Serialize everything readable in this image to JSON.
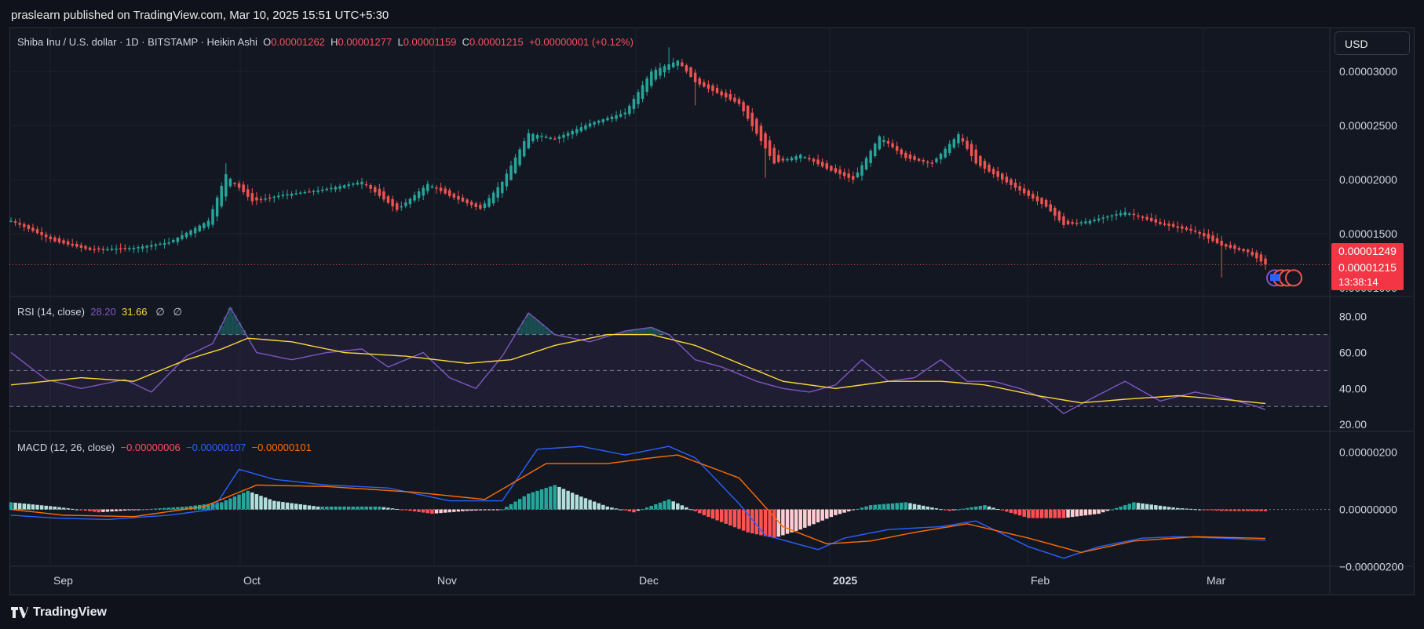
{
  "header": {
    "publisher_line": "praslearn published on TradingView.com, Mar 10, 2025 15:51 UTC+5:30"
  },
  "footer": {
    "brand": "TradingView"
  },
  "symbol_legend": {
    "title": "Shiba Inu / U.S. dollar · 1D · BITSTAMP · Heikin Ashi",
    "open_label": "O",
    "open": "0.00001262",
    "high_label": "H",
    "high": "0.00001277",
    "low_label": "L",
    "low": "0.00001159",
    "close_label": "C",
    "close": "0.00001215",
    "change": "+0.00000001 (+0.12%)"
  },
  "currency_button": "USD",
  "price_badges": {
    "upper": "0.00001249",
    "current": "0.00001215",
    "countdown": "13:38:14",
    "partial_tick": "0.00001000"
  },
  "rsi_legend": {
    "name": "RSI (14, close)",
    "rsi": "28.20",
    "ma": "31.66",
    "extra1": "∅",
    "extra2": "∅"
  },
  "macd_legend": {
    "name": "MACD (12, 26, close)",
    "hist": "−0.00000006",
    "macd": "−0.00000107",
    "signal": "−0.00000101"
  },
  "colors": {
    "bg": "#131722",
    "up": "#26a69a",
    "down": "#ef5350",
    "rsi": "#7e57c2",
    "rsi_ma": "#fdd835",
    "macd": "#2962ff",
    "signal": "#ff6d00",
    "hist_up_strong": "#26a69a",
    "hist_up_weak": "#b2dfdb",
    "hist_down_strong": "#ff5252",
    "hist_down_weak": "#ffcdd2"
  },
  "chart_data": [
    {
      "type": "candlestick",
      "title": "Shiba Inu / U.S. dollar · 1D · BITSTAMP · Heikin Ashi",
      "x_tick_labels": [
        "Sep",
        "Oct",
        "Nov",
        "Dec",
        "2025",
        "Feb",
        "Mar"
      ],
      "y_tick_labels": [
        "0.00003000",
        "0.00002500",
        "0.00002000",
        "0.00001500"
      ],
      "ylim": [
        9.2e-06,
        3.4e-05
      ],
      "close_anchors_1e8": [
        [
          0,
          1620
        ],
        [
          10,
          1430
        ],
        [
          18,
          1350
        ],
        [
          28,
          1370
        ],
        [
          36,
          1420
        ],
        [
          45,
          1620
        ],
        [
          49,
          2050
        ],
        [
          55,
          1800
        ],
        [
          62,
          1860
        ],
        [
          70,
          1900
        ],
        [
          80,
          1980
        ],
        [
          88,
          1720
        ],
        [
          95,
          1960
        ],
        [
          100,
          1850
        ],
        [
          107,
          1730
        ],
        [
          112,
          1980
        ],
        [
          118,
          2430
        ],
        [
          124,
          2380
        ],
        [
          132,
          2520
        ],
        [
          140,
          2620
        ],
        [
          146,
          3000
        ],
        [
          152,
          3100
        ],
        [
          156,
          2900
        ],
        [
          160,
          2820
        ],
        [
          166,
          2700
        ],
        [
          174,
          2150
        ],
        [
          180,
          2230
        ],
        [
          186,
          2100
        ],
        [
          192,
          2000
        ],
        [
          198,
          2400
        ],
        [
          204,
          2200
        ],
        [
          210,
          2150
        ],
        [
          216,
          2420
        ],
        [
          220,
          2150
        ],
        [
          226,
          2000
        ],
        [
          232,
          1850
        ],
        [
          236,
          1750
        ],
        [
          240,
          1580
        ],
        [
          246,
          1620
        ],
        [
          254,
          1700
        ],
        [
          262,
          1590
        ],
        [
          270,
          1520
        ],
        [
          276,
          1390
        ],
        [
          282,
          1330
        ],
        [
          286,
          1215
        ]
      ],
      "grid": true
    },
    {
      "type": "line",
      "title": "RSI (14, close)",
      "y_tick_labels": [
        "80.00",
        "60.00",
        "40.00",
        "20.00"
      ],
      "ylim": [
        17,
        86
      ],
      "levels": [
        70,
        50,
        30
      ],
      "series": [
        {
          "name": "RSI",
          "anchors": [
            [
              0,
              60
            ],
            [
              8,
              45
            ],
            [
              16,
              40
            ],
            [
              26,
              45
            ],
            [
              32,
              38
            ],
            [
              40,
              58
            ],
            [
              46,
              65
            ],
            [
              50,
              85
            ],
            [
              56,
              60
            ],
            [
              64,
              56
            ],
            [
              72,
              60
            ],
            [
              80,
              62
            ],
            [
              86,
              52
            ],
            [
              94,
              60
            ],
            [
              100,
              46
            ],
            [
              106,
              40
            ],
            [
              112,
              58
            ],
            [
              118,
              82
            ],
            [
              124,
              70
            ],
            [
              132,
              66
            ],
            [
              140,
              72
            ],
            [
              146,
              74
            ],
            [
              150,
              70
            ],
            [
              156,
              56
            ],
            [
              162,
              52
            ],
            [
              170,
              44
            ],
            [
              176,
              40
            ],
            [
              182,
              38
            ],
            [
              188,
              42
            ],
            [
              194,
              56
            ],
            [
              200,
              44
            ],
            [
              206,
              46
            ],
            [
              212,
              56
            ],
            [
              218,
              44
            ],
            [
              224,
              44
            ],
            [
              230,
              40
            ],
            [
              236,
              34
            ],
            [
              240,
              26
            ],
            [
              246,
              34
            ],
            [
              254,
              44
            ],
            [
              262,
              33
            ],
            [
              270,
              38
            ],
            [
              278,
              34
            ],
            [
              284,
              30
            ],
            [
              286,
              28.2
            ]
          ],
          "last": 28.2
        },
        {
          "name": "RSI-based MA",
          "anchors": [
            [
              0,
              42
            ],
            [
              16,
              46
            ],
            [
              28,
              44
            ],
            [
              40,
              56
            ],
            [
              48,
              62
            ],
            [
              54,
              68
            ],
            [
              64,
              66
            ],
            [
              76,
              60
            ],
            [
              90,
              58
            ],
            [
              104,
              54
            ],
            [
              114,
              56
            ],
            [
              124,
              64
            ],
            [
              136,
              70
            ],
            [
              146,
              70
            ],
            [
              156,
              64
            ],
            [
              166,
              54
            ],
            [
              176,
              44
            ],
            [
              188,
              40
            ],
            [
              200,
              44
            ],
            [
              212,
              44
            ],
            [
              222,
              42
            ],
            [
              234,
              36
            ],
            [
              244,
              32
            ],
            [
              254,
              34
            ],
            [
              266,
              36
            ],
            [
              276,
              34
            ],
            [
              286,
              31.66
            ]
          ],
          "last": 31.66
        }
      ]
    },
    {
      "type": "line+histogram",
      "title": "MACD (12, 26, close)",
      "y_tick_labels": [
        "0.00000200",
        "0.00000000",
        "−0.00000200"
      ],
      "ylim": [
        -220,
        245
      ],
      "units": "1e-8",
      "series": [
        {
          "name": "MACD",
          "anchors": [
            [
              0,
              -20
            ],
            [
              10,
              -30
            ],
            [
              22,
              -35
            ],
            [
              36,
              -20
            ],
            [
              46,
              0
            ],
            [
              52,
              140
            ],
            [
              60,
              105
            ],
            [
              72,
              85
            ],
            [
              86,
              75
            ],
            [
              100,
              30
            ],
            [
              112,
              30
            ],
            [
              120,
              210
            ],
            [
              130,
              220
            ],
            [
              140,
              190
            ],
            [
              150,
              220
            ],
            [
              156,
              180
            ],
            [
              166,
              20
            ],
            [
              172,
              -90
            ],
            [
              184,
              -140
            ],
            [
              190,
              -100
            ],
            [
              200,
              -70
            ],
            [
              212,
              -60
            ],
            [
              220,
              -40
            ],
            [
              232,
              -130
            ],
            [
              240,
              -170
            ],
            [
              248,
              -130
            ],
            [
              258,
              -100
            ],
            [
              266,
              -95
            ],
            [
              276,
              -100
            ],
            [
              286,
              -107
            ]
          ],
          "last": -107
        },
        {
          "name": "Signal",
          "anchors": [
            [
              0,
              0
            ],
            [
              12,
              -20
            ],
            [
              28,
              -25
            ],
            [
              44,
              10
            ],
            [
              56,
              85
            ],
            [
              72,
              80
            ],
            [
              92,
              60
            ],
            [
              108,
              35
            ],
            [
              122,
              160
            ],
            [
              136,
              160
            ],
            [
              146,
              180
            ],
            [
              152,
              190
            ],
            [
              166,
              110
            ],
            [
              176,
              -60
            ],
            [
              186,
              -120
            ],
            [
              196,
              -110
            ],
            [
              206,
              -80
            ],
            [
              218,
              -50
            ],
            [
              232,
              -100
            ],
            [
              244,
              -150
            ],
            [
              256,
              -110
            ],
            [
              270,
              -95
            ],
            [
              286,
              -101
            ]
          ],
          "last": -101
        },
        {
          "name": "Histogram",
          "anchors": [
            [
              0,
              25
            ],
            [
              10,
              10
            ],
            [
              20,
              -10
            ],
            [
              40,
              10
            ],
            [
              48,
              25
            ],
            [
              54,
              65
            ],
            [
              60,
              30
            ],
            [
              70,
              10
            ],
            [
              84,
              10
            ],
            [
              96,
              -15
            ],
            [
              104,
              -5
            ],
            [
              112,
              0
            ],
            [
              118,
              55
            ],
            [
              124,
              85
            ],
            [
              130,
              45
            ],
            [
              136,
              10
            ],
            [
              142,
              -10
            ],
            [
              150,
              35
            ],
            [
              158,
              -20
            ],
            [
              168,
              -80
            ],
            [
              174,
              -100
            ],
            [
              180,
              -70
            ],
            [
              188,
              -20
            ],
            [
              196,
              15
            ],
            [
              204,
              25
            ],
            [
              214,
              -5
            ],
            [
              222,
              15
            ],
            [
              232,
              -30
            ],
            [
              240,
              -30
            ],
            [
              248,
              -15
            ],
            [
              256,
              25
            ],
            [
              266,
              5
            ],
            [
              276,
              -5
            ],
            [
              286,
              -6
            ]
          ],
          "last": -6
        }
      ]
    }
  ]
}
